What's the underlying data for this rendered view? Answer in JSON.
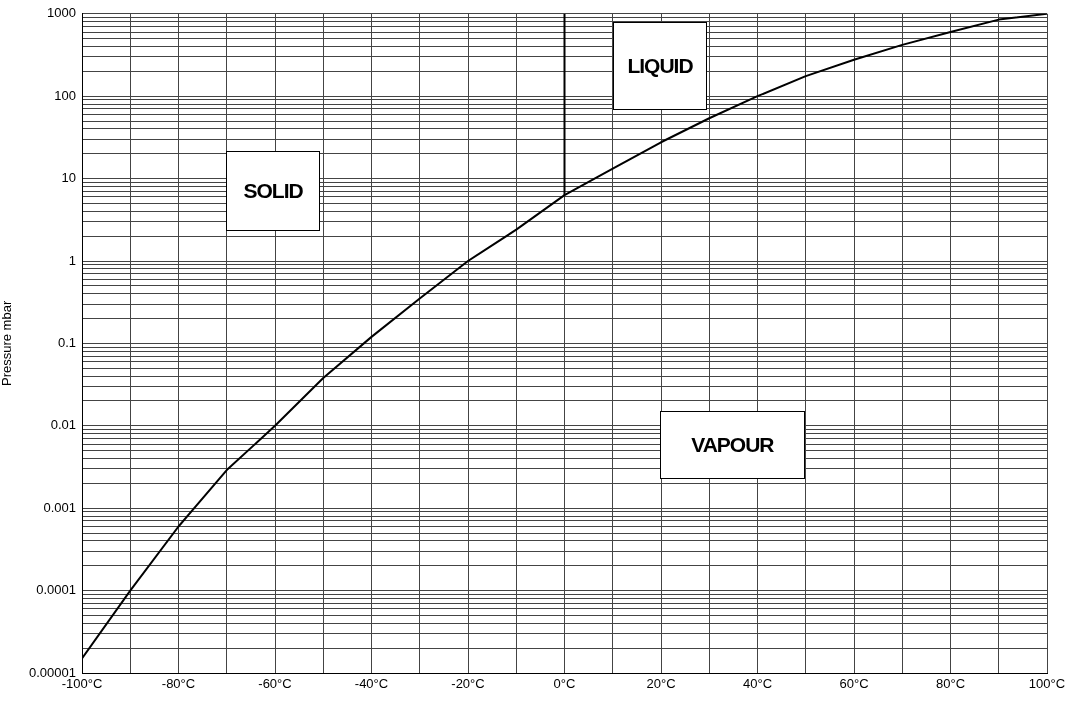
{
  "chart_data": {
    "type": "line",
    "ylabel": "Pressure mbar",
    "log": "y",
    "grid": true,
    "marker": "none",
    "line_style": "solid",
    "legend": false,
    "series": [
      {
        "color": "#000000",
        "x": [
          -100,
          -90,
          -80,
          -70,
          -60,
          -50,
          -40,
          -30,
          -20,
          -10,
          0,
          10,
          20,
          30,
          40,
          50,
          60,
          70,
          80,
          90,
          100
        ],
        "values": [
          1.5e-05,
          0.0001,
          0.0006,
          0.0029,
          0.01,
          0.038,
          0.12,
          0.35,
          1,
          2.4,
          6.3,
          13.2,
          27.6,
          54,
          100,
          175,
          277,
          420,
          600,
          850,
          1000
        ]
      },
      {
        "color": "#000000",
        "x": [
          0,
          0
        ],
        "values": [
          6.3,
          1000
        ]
      }
    ],
    "xlim": [
      -100,
      100
    ],
    "xticks": [
      {
        "value": -100,
        "label": "-100°C"
      },
      {
        "value": -90,
        "label": null
      },
      {
        "value": -80,
        "label": "-80°C"
      },
      {
        "value": -70,
        "label": null
      },
      {
        "value": -60,
        "label": "-60°C"
      },
      {
        "value": -50,
        "label": null
      },
      {
        "value": -40,
        "label": "-40°C"
      },
      {
        "value": -30,
        "label": null
      },
      {
        "value": -20,
        "label": "-20°C"
      },
      {
        "value": -10,
        "label": null
      },
      {
        "value": 0,
        "label": "0°C"
      },
      {
        "value": 10,
        "label": null
      },
      {
        "value": 20,
        "label": "20°C"
      },
      {
        "value": 30,
        "label": null
      },
      {
        "value": 40,
        "label": "40°C"
      },
      {
        "value": 50,
        "label": null
      },
      {
        "value": 60,
        "label": "60°C"
      },
      {
        "value": 70,
        "label": null
      },
      {
        "value": 80,
        "label": "80°C"
      },
      {
        "value": 90,
        "label": null
      },
      {
        "value": 100,
        "label": "100°C"
      }
    ],
    "ylim": [
      1e-05,
      1000
    ],
    "yticks": [
      {
        "value": 1e-05,
        "label": "0.00001"
      },
      {
        "value": 2e-05,
        "label": null
      },
      {
        "value": 3e-05,
        "label": null
      },
      {
        "value": 4e-05,
        "label": null
      },
      {
        "value": 5e-05,
        "label": null
      },
      {
        "value": 6e-05,
        "label": null
      },
      {
        "value": 7e-05,
        "label": null
      },
      {
        "value": 8e-05,
        "label": null
      },
      {
        "value": 9e-05,
        "label": null
      },
      0.0001,
      {
        "value": 0.0002,
        "label": null
      },
      {
        "value": 0.0003,
        "label": null
      },
      {
        "value": 0.0004,
        "label": null
      },
      {
        "value": 0.0005,
        "label": null
      },
      {
        "value": 0.0006,
        "label": null
      },
      {
        "value": 0.0007,
        "label": null
      },
      {
        "value": 0.0008,
        "label": null
      },
      {
        "value": 0.0009,
        "label": null
      },
      0.001,
      {
        "value": 0.002,
        "label": null
      },
      {
        "value": 0.003,
        "label": null
      },
      {
        "value": 0.004,
        "label": null
      },
      {
        "value": 0.005,
        "label": null
      },
      {
        "value": 0.006,
        "label": null
      },
      {
        "value": 0.007,
        "label": null
      },
      {
        "value": 0.008,
        "label": null
      },
      {
        "value": 0.009,
        "label": null
      },
      0.01,
      {
        "value": 0.02,
        "label": null
      },
      {
        "value": 0.03,
        "label": null
      },
      {
        "value": 0.04,
        "label": null
      },
      {
        "value": 0.05,
        "label": null
      },
      {
        "value": 0.06,
        "label": null
      },
      {
        "value": 0.07,
        "label": null
      },
      {
        "value": 0.08,
        "label": null
      },
      {
        "value": 0.09,
        "label": null
      },
      0.1,
      {
        "value": 0.2,
        "label": null
      },
      {
        "value": 0.3,
        "label": null
      },
      {
        "value": 0.4,
        "label": null
      },
      {
        "value": 0.5,
        "label": null
      },
      {
        "value": 0.6,
        "label": null
      },
      {
        "value": 0.7,
        "label": null
      },
      {
        "value": 0.8,
        "label": null
      },
      {
        "value": 0.9,
        "label": null
      },
      1,
      {
        "value": 2,
        "label": null
      },
      {
        "value": 3,
        "label": null
      },
      {
        "value": 4,
        "label": null
      },
      {
        "value": 5,
        "label": null
      },
      {
        "value": 6,
        "label": null
      },
      {
        "value": 7,
        "label": null
      },
      {
        "value": 8,
        "label": null
      },
      {
        "value": 9,
        "label": null
      },
      10,
      {
        "value": 20,
        "label": null
      },
      {
        "value": 30,
        "label": null
      },
      {
        "value": 40,
        "label": null
      },
      {
        "value": 50,
        "label": null
      },
      {
        "value": 60,
        "label": null
      },
      {
        "value": 70,
        "label": null
      },
      {
        "value": 80,
        "label": null
      },
      {
        "value": 90,
        "label": null
      },
      100,
      {
        "value": 200,
        "label": null
      },
      {
        "value": 300,
        "label": null
      },
      {
        "value": 400,
        "label": null
      },
      {
        "value": 500,
        "label": null
      },
      {
        "value": 600,
        "label": null
      },
      {
        "value": 700,
        "label": null
      },
      {
        "value": 800,
        "label": null
      },
      {
        "value": 900,
        "label": null
      },
      1000
    ],
    "annotations": [
      "SOLID",
      "LIQUID",
      "VAPOUR"
    ]
  }
}
